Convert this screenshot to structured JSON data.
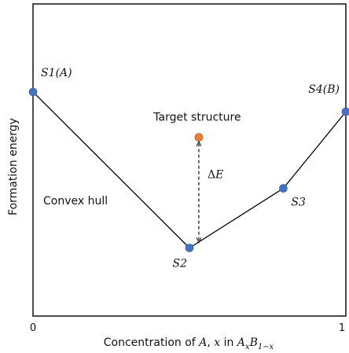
{
  "chart_data": {
    "type": "line",
    "title": "",
    "xlabel": {
      "prefix": "Concentration of ",
      "var_a": "A",
      "comma": ", ",
      "var_x": "x",
      "in": " in ",
      "formula_a": "A",
      "sub_x": "x",
      "formula_b": "B",
      "sub_1mx": "1−x"
    },
    "ylabel": "Formation energy",
    "xlim": [
      0,
      1
    ],
    "ylim": [
      -1,
      0.1
    ],
    "x_ticks": [
      "0",
      "1"
    ],
    "grid": false,
    "series": [
      {
        "name": "Convex hull",
        "color": "#000000",
        "points": [
          {
            "id": "S1",
            "label": "S1(A)",
            "x": 0.0,
            "y": -0.21
          },
          {
            "id": "S2",
            "label": "S2",
            "x": 0.5,
            "y": -0.76
          },
          {
            "id": "S3",
            "label": "S3",
            "x": 0.8,
            "y": -0.55
          },
          {
            "id": "S4",
            "label": "S4(B)",
            "x": 1.0,
            "y": -0.28
          }
        ],
        "marker_color": "#4472c4"
      }
    ],
    "target": {
      "label": "Target structure",
      "x": 0.53,
      "y": -0.37,
      "color": "#ed7d31"
    },
    "annotations": {
      "hull_label": "Convex hull",
      "delta_label": "ΔE"
    }
  }
}
